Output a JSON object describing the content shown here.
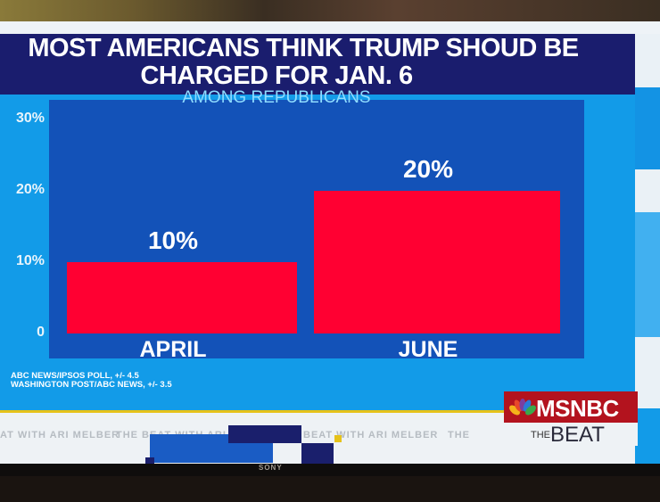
{
  "chart_data": {
    "type": "bar",
    "title": "MOST AMERICANS THINK TRUMP SHOUD BE CHARGED FOR JAN. 6",
    "title_lines": [
      "MOST AMERICANS THINK TRUMP SHOUD BE",
      "CHARGED FOR JAN. 6"
    ],
    "subtitle": "AMONG REPUBLICANS",
    "categories": [
      "APRIL",
      "JUNE"
    ],
    "values": [
      10,
      20
    ],
    "value_labels": [
      "10%",
      "20%"
    ],
    "xlabel": "",
    "ylabel": "",
    "ylim": [
      0,
      30
    ],
    "yticks": [
      0,
      10,
      20,
      30
    ],
    "ytick_labels": [
      "0",
      "10%",
      "20%",
      "30%"
    ],
    "grid": false,
    "bar_color": "#ff0032",
    "plot_bg": "#1352b8",
    "background": "#129be8"
  },
  "sources": [
    "ABC NEWS/IPSOS POLL, +/- 4.5",
    "WASHINGTON POST/ABC NEWS, +/- 3.5"
  ],
  "ticker": {
    "segments": [
      "AT WITH ARI MELBER",
      "THE BEAT WITH ARI MELBER",
      "BEAT WITH ARI MELBER",
      "THE"
    ]
  },
  "network": {
    "logo_text": "MSNBC",
    "show_prefix": "THE",
    "show_name": "BEAT",
    "brand_color": "#b3131e"
  },
  "tv": {
    "brand": "SONY"
  }
}
